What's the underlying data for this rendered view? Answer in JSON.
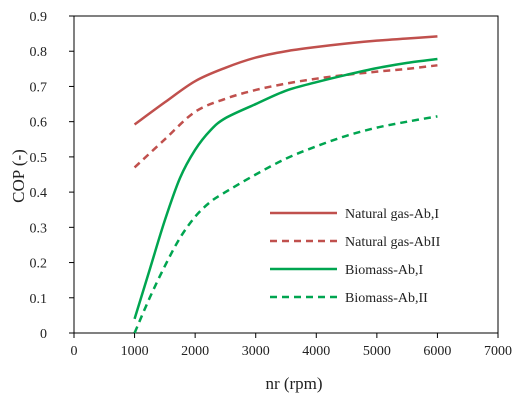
{
  "chart_data": {
    "type": "line",
    "xlabel": "nr (rpm)",
    "ylabel": "COP (-)",
    "xlim": [
      0,
      7000
    ],
    "ylim": [
      0,
      0.9
    ],
    "x_ticks": [
      0,
      1000,
      2000,
      3000,
      4000,
      5000,
      6000,
      7000
    ],
    "y_ticks": [
      0,
      0.1,
      0.2,
      0.3,
      0.4,
      0.5,
      0.6,
      0.7,
      0.8,
      0.9
    ],
    "x_tick_labels": [
      "0",
      "1000",
      "2000",
      "3000",
      "4000",
      "5000",
      "6000",
      "7000"
    ],
    "y_tick_labels": [
      "0",
      "0.1",
      "0.2",
      "0.3",
      "0.4",
      "0.5",
      "0.6",
      "0.7",
      "0.8",
      "0.9"
    ],
    "grid": false,
    "legend_position": "bottom-right",
    "series": [
      {
        "name": "Natural gas-Ab,I",
        "color": "#c0504d",
        "style": "solid",
        "x": [
          1000,
          1500,
          2000,
          2500,
          3000,
          3500,
          4000,
          4500,
          5000,
          5500,
          6000
        ],
        "y": [
          0.592,
          0.655,
          0.715,
          0.753,
          0.782,
          0.8,
          0.812,
          0.822,
          0.83,
          0.836,
          0.842
        ]
      },
      {
        "name": "Natural gas-AbII",
        "color": "#c0504d",
        "style": "dashed",
        "x": [
          1000,
          1500,
          2000,
          2500,
          3000,
          3500,
          4000,
          4500,
          5000,
          5500,
          6000
        ],
        "y": [
          0.47,
          0.55,
          0.628,
          0.665,
          0.69,
          0.708,
          0.722,
          0.733,
          0.742,
          0.75,
          0.76
        ]
      },
      {
        "name": "Biomass-Ab,I",
        "color": "#00a550",
        "style": "solid",
        "x": [
          1000,
          1250,
          1500,
          1750,
          2000,
          2250,
          2500,
          3000,
          3500,
          4000,
          4500,
          5000,
          5500,
          6000
        ],
        "y": [
          0.04,
          0.18,
          0.32,
          0.44,
          0.52,
          0.575,
          0.61,
          0.65,
          0.688,
          0.712,
          0.733,
          0.752,
          0.767,
          0.778
        ]
      },
      {
        "name": "Biomass-Ab,II",
        "color": "#00a550",
        "style": "dashed",
        "x": [
          1000,
          1250,
          1500,
          1750,
          2000,
          2250,
          2500,
          3000,
          3500,
          4000,
          4500,
          5000,
          5500,
          6000
        ],
        "y": [
          0.0,
          0.1,
          0.19,
          0.27,
          0.33,
          0.372,
          0.4,
          0.45,
          0.495,
          0.53,
          0.56,
          0.583,
          0.6,
          0.615
        ]
      }
    ]
  }
}
